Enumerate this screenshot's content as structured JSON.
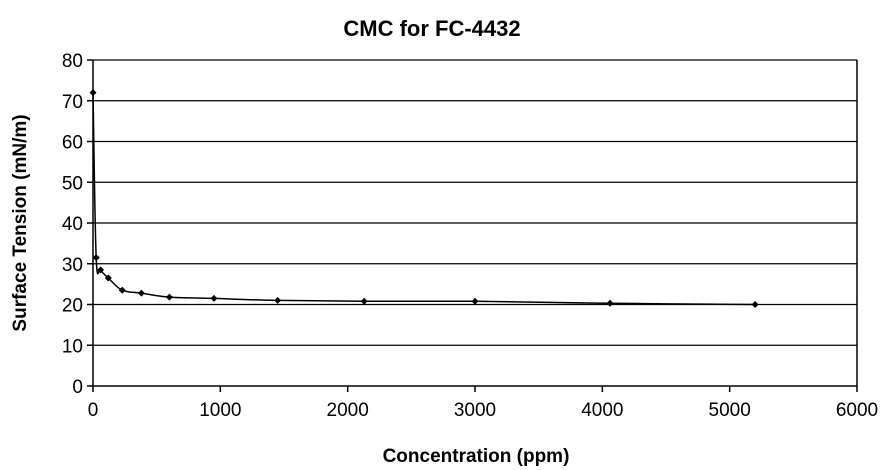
{
  "chart_data": {
    "type": "scatter",
    "title": "CMC for FC-4432",
    "xlabel": "Concentration (ppm)",
    "ylabel": "Surface Tension (mN/m)",
    "xlim": [
      0,
      6000
    ],
    "ylim": [
      0,
      80
    ],
    "xticks": [
      0,
      1000,
      2000,
      3000,
      4000,
      5000,
      6000
    ],
    "yticks": [
      0,
      10,
      20,
      30,
      40,
      50,
      60,
      70,
      80
    ],
    "grid": "horizontal",
    "legend": "none",
    "series": [
      {
        "x": [
          0,
          25,
          60,
          120,
          230,
          380,
          600,
          950,
          1450,
          2130,
          3000,
          4060,
          5200
        ],
        "y": [
          72,
          31.5,
          28.5,
          26.5,
          23.5,
          22.8,
          21.8,
          21.5,
          21.0,
          20.8,
          20.8,
          20.3,
          20.0
        ]
      }
    ]
  }
}
